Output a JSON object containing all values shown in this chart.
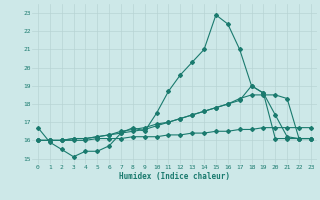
{
  "xlabel": "Humidex (Indice chaleur)",
  "x_values": [
    0,
    1,
    2,
    3,
    4,
    5,
    6,
    7,
    8,
    9,
    10,
    11,
    12,
    13,
    14,
    15,
    16,
    17,
    18,
    19,
    20,
    21,
    22,
    23
  ],
  "line1_y": [
    16.7,
    15.9,
    15.5,
    15.1,
    15.4,
    15.4,
    15.7,
    16.4,
    16.7,
    16.5,
    17.5,
    18.7,
    19.6,
    20.3,
    21.0,
    22.9,
    22.4,
    21.0,
    19.0,
    18.6,
    17.4,
    16.2,
    16.1,
    16.1
  ],
  "line2_y": [
    16.0,
    16.0,
    16.0,
    16.1,
    16.1,
    16.2,
    16.3,
    16.4,
    16.5,
    16.6,
    16.8,
    17.0,
    17.2,
    17.4,
    17.6,
    17.8,
    18.0,
    18.2,
    19.0,
    18.6,
    16.1,
    16.1,
    16.1,
    16.1
  ],
  "line3_y": [
    16.0,
    16.0,
    16.0,
    16.1,
    16.1,
    16.2,
    16.3,
    16.5,
    16.6,
    16.7,
    16.9,
    17.0,
    17.2,
    17.4,
    17.6,
    17.8,
    18.0,
    18.3,
    18.5,
    18.5,
    18.5,
    18.3,
    16.1,
    16.1
  ],
  "line4_y": [
    16.0,
    16.0,
    16.0,
    16.0,
    16.0,
    16.1,
    16.1,
    16.1,
    16.2,
    16.2,
    16.2,
    16.3,
    16.3,
    16.4,
    16.4,
    16.5,
    16.5,
    16.6,
    16.6,
    16.7,
    16.7,
    16.7,
    16.7,
    16.7
  ],
  "ylim": [
    14.7,
    23.5
  ],
  "yticks": [
    15,
    16,
    17,
    18,
    19,
    20,
    21,
    22,
    23
  ],
  "xlim": [
    -0.5,
    23.5
  ],
  "xticks": [
    0,
    1,
    2,
    3,
    4,
    5,
    6,
    7,
    8,
    9,
    10,
    11,
    12,
    13,
    14,
    15,
    16,
    17,
    18,
    19,
    20,
    21,
    22,
    23
  ],
  "line_color": "#1a7a6e",
  "bg_color": "#cde8e8",
  "grid_color": "#b8d4d4",
  "tick_label_color": "#1a7a6e",
  "axis_label_color": "#1a7a6e",
  "marker": "D",
  "marker_size": 2.0,
  "linewidth": 0.8
}
